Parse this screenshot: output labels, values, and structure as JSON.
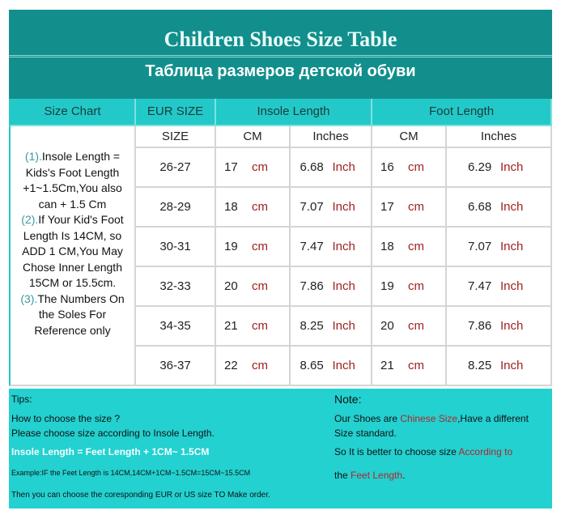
{
  "title": "Children Shoes Size Table",
  "subtitle": "Таблица размеров детской обуви",
  "headers": {
    "size_chart": "Size Chart",
    "eur_size": "EUR SIZE",
    "insole": "Insole Length",
    "foot": "Foot Length"
  },
  "subheaders": {
    "size": "SIZE",
    "cm1": "CM",
    "in1": "Inches",
    "cm2": "CM",
    "in2": "Inches"
  },
  "units": {
    "cm": "cm",
    "inch": "Inch"
  },
  "notes": [
    {
      "num": "(1).",
      "text": "Insole Length = Kids's Foot Length +1~1.5Cm,You also can + 1.5 Cm"
    },
    {
      "num": "(2).",
      "text": "If Your Kid's Foot Length Is 14CM,  so ADD 1 CM,You May Chose Inner Length 15CM or 15.5cm."
    },
    {
      "num": "(3).",
      "text": "The Numbers On the Soles For Reference only"
    }
  ],
  "rows": [
    {
      "eur": "26-27",
      "insole_cm": "17",
      "insole_in": "6.68",
      "foot_cm": "16",
      "foot_in": "6.29"
    },
    {
      "eur": "28-29",
      "insole_cm": "18",
      "insole_in": "7.07",
      "foot_cm": "17",
      "foot_in": "6.68"
    },
    {
      "eur": "30-31",
      "insole_cm": "19",
      "insole_in": "7.47",
      "foot_cm": "18",
      "foot_in": "7.07"
    },
    {
      "eur": "32-33",
      "insole_cm": "20",
      "insole_in": "7.86",
      "foot_cm": "19",
      "foot_in": "7.47"
    },
    {
      "eur": "34-35",
      "insole_cm": "21",
      "insole_in": "8.25",
      "foot_cm": "20",
      "foot_in": "7.86"
    },
    {
      "eur": "36-37",
      "insole_cm": "22",
      "insole_in": "8.65",
      "foot_cm": "21",
      "foot_in": "8.25"
    }
  ],
  "tips": {
    "label": "Tips:",
    "q": "How to choose the size ?",
    "a": "Please choose size according to Insole Length.",
    "formula": "Insole Length = Feet Length + 1CM~ 1.5CM",
    "example": "Example:IF the Feet Length is 14CM,14CM+1CM~1.5CM=15CM~15.5CM",
    "then": "Then you can choose the coresponding EUR or US size TO Make order."
  },
  "note": {
    "label": "Note:",
    "l1a": "Our Shoes are ",
    "l1b": "Chinese Size",
    ",l1c": "",
    "l1c": ",Have a different",
    "l2": "Size standard.",
    "l3a": "So It is better to choose size ",
    "l3b": "According to",
    "l4a": "the ",
    "l4b": "Feet Length",
    "l4c": "."
  },
  "colors": {
    "title_band": "#128f8c",
    "header": "#22c9c8",
    "tips_bg": "#22d1d0",
    "unit_red": "#a02020"
  }
}
